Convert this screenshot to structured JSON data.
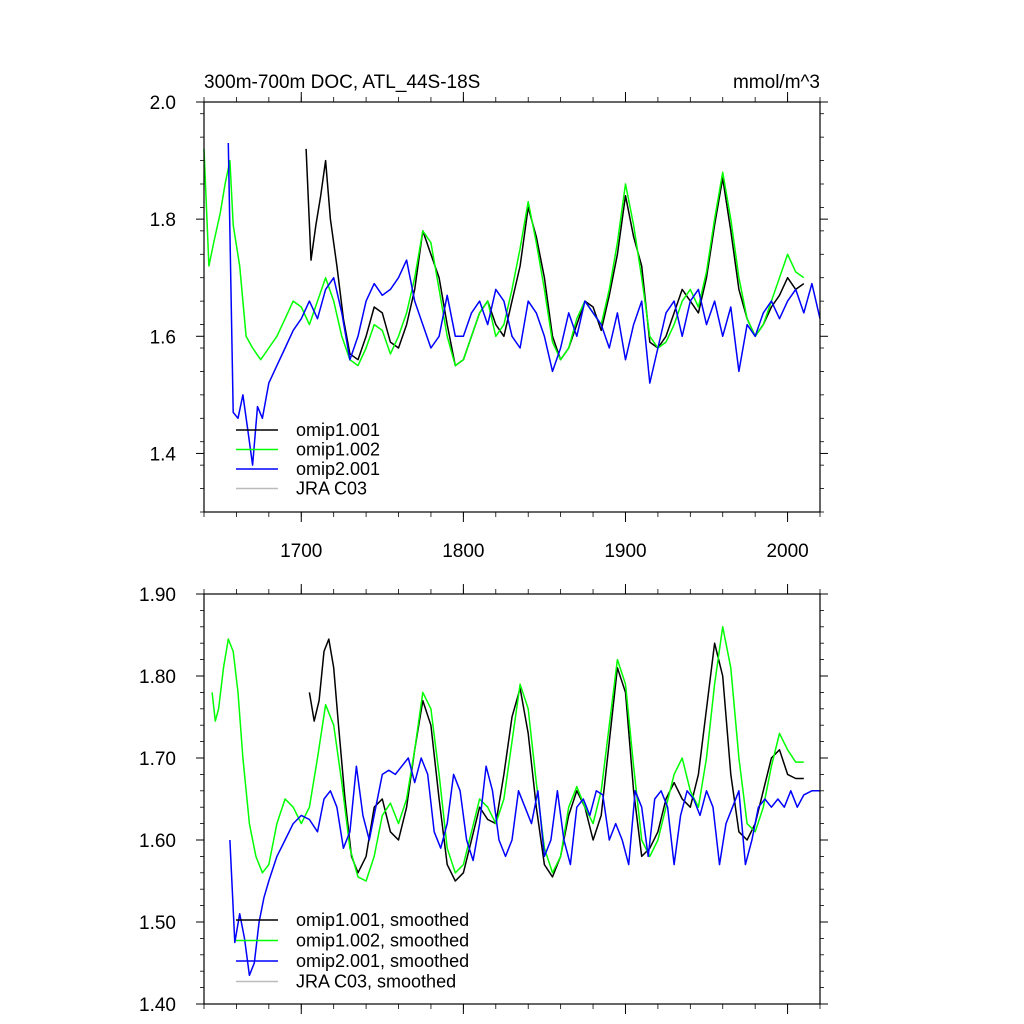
{
  "chart_data": [
    {
      "type": "line",
      "title": "300m-700m DOC, ATL_44S-18S",
      "units": "mmol/m^3",
      "xlim": [
        1640,
        2020
      ],
      "ylim": [
        1.3,
        2.0
      ],
      "yticks": [
        1.4,
        1.6,
        1.8,
        2.0
      ],
      "ytick_labels": [
        "1.4",
        "1.6",
        "1.8",
        "2.0"
      ],
      "xticks": [
        1700,
        1800,
        1900,
        2000
      ],
      "xtick_labels": [
        "1700",
        "1800",
        "1900",
        "2000"
      ],
      "legend_position": "bottom-left",
      "series": [
        {
          "name": "omip1.001",
          "color": "#000000",
          "x": [
            1703,
            1706,
            1709,
            1712,
            1715,
            1718,
            1722,
            1726,
            1730,
            1735,
            1740,
            1745,
            1750,
            1755,
            1760,
            1765,
            1770,
            1775,
            1780,
            1785,
            1790,
            1795,
            1800,
            1805,
            1810,
            1815,
            1820,
            1825,
            1830,
            1835,
            1840,
            1845,
            1850,
            1855,
            1860,
            1865,
            1870,
            1875,
            1880,
            1885,
            1890,
            1895,
            1900,
            1905,
            1910,
            1915,
            1920,
            1925,
            1930,
            1935,
            1940,
            1945,
            1950,
            1955,
            1960,
            1965,
            1970,
            1975,
            1980,
            1985,
            1990,
            1995,
            2000,
            2005,
            2010
          ],
          "y": [
            1.92,
            1.73,
            1.79,
            1.84,
            1.9,
            1.8,
            1.72,
            1.63,
            1.57,
            1.56,
            1.6,
            1.65,
            1.64,
            1.59,
            1.58,
            1.62,
            1.68,
            1.78,
            1.74,
            1.7,
            1.62,
            1.55,
            1.56,
            1.6,
            1.64,
            1.66,
            1.62,
            1.6,
            1.66,
            1.72,
            1.82,
            1.77,
            1.7,
            1.6,
            1.56,
            1.58,
            1.62,
            1.66,
            1.65,
            1.61,
            1.67,
            1.74,
            1.84,
            1.77,
            1.72,
            1.59,
            1.58,
            1.6,
            1.64,
            1.68,
            1.66,
            1.64,
            1.7,
            1.79,
            1.87,
            1.78,
            1.68,
            1.63,
            1.6,
            1.62,
            1.65,
            1.67,
            1.7,
            1.68,
            1.69
          ]
        },
        {
          "name": "omip1.002",
          "color": "#00ff00",
          "x": [
            1640,
            1643,
            1646,
            1650,
            1653,
            1656,
            1658,
            1662,
            1666,
            1670,
            1675,
            1680,
            1685,
            1690,
            1695,
            1700,
            1705,
            1710,
            1715,
            1720,
            1725,
            1730,
            1735,
            1740,
            1745,
            1750,
            1755,
            1760,
            1765,
            1770,
            1775,
            1780,
            1785,
            1790,
            1795,
            1800,
            1805,
            1810,
            1815,
            1820,
            1825,
            1830,
            1835,
            1840,
            1845,
            1850,
            1855,
            1860,
            1865,
            1870,
            1875,
            1880,
            1885,
            1890,
            1895,
            1900,
            1905,
            1910,
            1915,
            1920,
            1925,
            1930,
            1935,
            1940,
            1945,
            1950,
            1955,
            1960,
            1965,
            1970,
            1975,
            1980,
            1985,
            1990,
            1995,
            2000,
            2005,
            2010
          ],
          "y": [
            1.92,
            1.72,
            1.76,
            1.81,
            1.86,
            1.9,
            1.79,
            1.72,
            1.6,
            1.58,
            1.56,
            1.58,
            1.6,
            1.63,
            1.66,
            1.65,
            1.62,
            1.66,
            1.7,
            1.66,
            1.6,
            1.56,
            1.55,
            1.58,
            1.62,
            1.61,
            1.57,
            1.6,
            1.64,
            1.7,
            1.78,
            1.76,
            1.68,
            1.6,
            1.55,
            1.56,
            1.6,
            1.64,
            1.66,
            1.6,
            1.62,
            1.68,
            1.75,
            1.83,
            1.76,
            1.68,
            1.59,
            1.56,
            1.58,
            1.63,
            1.66,
            1.64,
            1.62,
            1.68,
            1.76,
            1.86,
            1.79,
            1.7,
            1.6,
            1.58,
            1.59,
            1.62,
            1.66,
            1.68,
            1.65,
            1.71,
            1.8,
            1.88,
            1.8,
            1.7,
            1.63,
            1.6,
            1.62,
            1.66,
            1.7,
            1.74,
            1.71,
            1.7
          ]
        },
        {
          "name": "omip2.001",
          "color": "#0000ff",
          "x": [
            1655,
            1658,
            1661,
            1664,
            1667,
            1670,
            1673,
            1676,
            1680,
            1685,
            1690,
            1695,
            1700,
            1705,
            1710,
            1715,
            1720,
            1725,
            1730,
            1735,
            1740,
            1745,
            1750,
            1755,
            1760,
            1765,
            1770,
            1775,
            1780,
            1785,
            1790,
            1795,
            1800,
            1805,
            1810,
            1815,
            1820,
            1825,
            1830,
            1835,
            1840,
            1845,
            1850,
            1855,
            1860,
            1865,
            1870,
            1875,
            1880,
            1885,
            1890,
            1895,
            1900,
            1905,
            1910,
            1915,
            1920,
            1925,
            1930,
            1935,
            1940,
            1945,
            1950,
            1955,
            1960,
            1965,
            1970,
            1975,
            1980,
            1985,
            1990,
            1995,
            2000,
            2005,
            2010,
            2015,
            2020
          ],
          "y": [
            1.93,
            1.47,
            1.46,
            1.5,
            1.44,
            1.38,
            1.48,
            1.46,
            1.52,
            1.55,
            1.58,
            1.61,
            1.63,
            1.66,
            1.63,
            1.68,
            1.7,
            1.64,
            1.56,
            1.6,
            1.66,
            1.69,
            1.67,
            1.68,
            1.7,
            1.73,
            1.66,
            1.62,
            1.58,
            1.6,
            1.67,
            1.6,
            1.6,
            1.64,
            1.66,
            1.62,
            1.68,
            1.66,
            1.6,
            1.58,
            1.66,
            1.64,
            1.6,
            1.54,
            1.58,
            1.64,
            1.6,
            1.66,
            1.64,
            1.62,
            1.58,
            1.64,
            1.56,
            1.62,
            1.66,
            1.52,
            1.58,
            1.64,
            1.66,
            1.6,
            1.66,
            1.68,
            1.62,
            1.66,
            1.6,
            1.65,
            1.54,
            1.62,
            1.6,
            1.64,
            1.66,
            1.63,
            1.66,
            1.68,
            1.64,
            1.69,
            1.63
          ]
        }
      ],
      "legend": [
        {
          "label": "omip1.001",
          "color": "#000000"
        },
        {
          "label": "omip1.002",
          "color": "#00ff00"
        },
        {
          "label": "omip2.001",
          "color": "#0000ff"
        },
        {
          "label": "JRA C03",
          "color": "#bbbbbb"
        }
      ]
    },
    {
      "type": "line",
      "title": "",
      "xlim": [
        1640,
        2020
      ],
      "ylim": [
        1.4,
        1.9
      ],
      "yticks": [
        1.4,
        1.5,
        1.6,
        1.7,
        1.8,
        1.9
      ],
      "ytick_labels": [
        "1.40",
        "1.50",
        "1.60",
        "1.70",
        "1.80",
        "1.90"
      ],
      "xticks": [
        1700,
        1800,
        1900,
        2000
      ],
      "xtick_labels": [],
      "legend_position": "bottom-left",
      "series": [
        {
          "name": "omip1.001, smoothed",
          "color": "#000000",
          "x": [
            1705,
            1708,
            1711,
            1714,
            1717,
            1720,
            1723,
            1727,
            1731,
            1735,
            1740,
            1745,
            1750,
            1755,
            1760,
            1765,
            1770,
            1775,
            1780,
            1785,
            1790,
            1795,
            1800,
            1805,
            1810,
            1815,
            1820,
            1825,
            1830,
            1835,
            1840,
            1845,
            1850,
            1855,
            1860,
            1865,
            1870,
            1875,
            1880,
            1885,
            1890,
            1895,
            1900,
            1905,
            1910,
            1915,
            1920,
            1925,
            1930,
            1935,
            1940,
            1945,
            1950,
            1955,
            1960,
            1965,
            1970,
            1975,
            1980,
            1985,
            1990,
            1995,
            2000,
            2005,
            2010
          ],
          "y": [
            1.78,
            1.745,
            1.77,
            1.83,
            1.845,
            1.81,
            1.74,
            1.65,
            1.58,
            1.56,
            1.58,
            1.64,
            1.65,
            1.61,
            1.6,
            1.64,
            1.71,
            1.77,
            1.74,
            1.65,
            1.57,
            1.55,
            1.56,
            1.6,
            1.64,
            1.625,
            1.62,
            1.68,
            1.75,
            1.785,
            1.73,
            1.64,
            1.57,
            1.555,
            1.58,
            1.63,
            1.66,
            1.64,
            1.6,
            1.63,
            1.72,
            1.81,
            1.78,
            1.66,
            1.58,
            1.59,
            1.61,
            1.65,
            1.67,
            1.65,
            1.64,
            1.68,
            1.76,
            1.84,
            1.8,
            1.68,
            1.61,
            1.6,
            1.62,
            1.66,
            1.7,
            1.71,
            1.68,
            1.675,
            1.675
          ]
        },
        {
          "name": "omip1.002, smoothed",
          "color": "#00ff00",
          "x": [
            1645,
            1647,
            1649,
            1652,
            1655,
            1658,
            1661,
            1664,
            1668,
            1672,
            1676,
            1680,
            1685,
            1690,
            1695,
            1700,
            1705,
            1710,
            1715,
            1720,
            1725,
            1730,
            1735,
            1740,
            1745,
            1750,
            1755,
            1760,
            1765,
            1770,
            1775,
            1780,
            1785,
            1790,
            1795,
            1800,
            1805,
            1810,
            1815,
            1820,
            1825,
            1830,
            1835,
            1840,
            1845,
            1850,
            1855,
            1860,
            1865,
            1870,
            1875,
            1880,
            1885,
            1890,
            1895,
            1900,
            1905,
            1910,
            1915,
            1920,
            1925,
            1930,
            1935,
            1940,
            1945,
            1950,
            1955,
            1960,
            1965,
            1970,
            1975,
            1980,
            1985,
            1990,
            1995,
            2000,
            2005,
            2010
          ],
          "y": [
            1.78,
            1.745,
            1.76,
            1.81,
            1.845,
            1.83,
            1.78,
            1.7,
            1.62,
            1.58,
            1.56,
            1.57,
            1.62,
            1.65,
            1.64,
            1.62,
            1.64,
            1.7,
            1.765,
            1.74,
            1.67,
            1.59,
            1.555,
            1.55,
            1.58,
            1.63,
            1.645,
            1.62,
            1.65,
            1.71,
            1.78,
            1.76,
            1.68,
            1.59,
            1.56,
            1.57,
            1.61,
            1.65,
            1.64,
            1.62,
            1.65,
            1.72,
            1.79,
            1.76,
            1.67,
            1.59,
            1.56,
            1.58,
            1.64,
            1.665,
            1.64,
            1.62,
            1.66,
            1.74,
            1.82,
            1.79,
            1.69,
            1.6,
            1.58,
            1.6,
            1.64,
            1.68,
            1.7,
            1.66,
            1.64,
            1.7,
            1.79,
            1.86,
            1.81,
            1.7,
            1.62,
            1.61,
            1.64,
            1.69,
            1.73,
            1.71,
            1.695,
            1.695
          ]
        },
        {
          "name": "omip2.001, smoothed",
          "color": "#0000ff",
          "x": [
            1656,
            1659,
            1662,
            1665,
            1668,
            1671,
            1674,
            1677,
            1680,
            1685,
            1690,
            1695,
            1700,
            1705,
            1710,
            1714,
            1718,
            1722,
            1726,
            1730,
            1734,
            1738,
            1742,
            1746,
            1750,
            1754,
            1758,
            1762,
            1766,
            1770,
            1774,
            1778,
            1782,
            1786,
            1790,
            1794,
            1798,
            1802,
            1806,
            1810,
            1814,
            1818,
            1822,
            1826,
            1830,
            1834,
            1838,
            1842,
            1846,
            1850,
            1854,
            1858,
            1862,
            1866,
            1870,
            1874,
            1878,
            1882,
            1886,
            1890,
            1894,
            1898,
            1902,
            1906,
            1910,
            1914,
            1918,
            1922,
            1926,
            1930,
            1934,
            1938,
            1942,
            1946,
            1950,
            1954,
            1958,
            1962,
            1966,
            1970,
            1974,
            1978,
            1982,
            1986,
            1990,
            1994,
            1998,
            2002,
            2006,
            2010,
            2015,
            2020
          ],
          "y": [
            1.6,
            1.475,
            1.51,
            1.48,
            1.435,
            1.45,
            1.5,
            1.53,
            1.55,
            1.58,
            1.6,
            1.62,
            1.63,
            1.625,
            1.61,
            1.65,
            1.66,
            1.64,
            1.59,
            1.61,
            1.69,
            1.63,
            1.6,
            1.64,
            1.68,
            1.685,
            1.68,
            1.69,
            1.7,
            1.67,
            1.7,
            1.68,
            1.61,
            1.59,
            1.62,
            1.68,
            1.66,
            1.6,
            1.575,
            1.62,
            1.69,
            1.66,
            1.6,
            1.58,
            1.6,
            1.66,
            1.64,
            1.62,
            1.66,
            1.58,
            1.6,
            1.66,
            1.6,
            1.57,
            1.64,
            1.65,
            1.63,
            1.66,
            1.655,
            1.6,
            1.62,
            1.6,
            1.57,
            1.66,
            1.64,
            1.58,
            1.65,
            1.66,
            1.64,
            1.57,
            1.63,
            1.66,
            1.65,
            1.63,
            1.66,
            1.64,
            1.57,
            1.62,
            1.64,
            1.66,
            1.57,
            1.6,
            1.64,
            1.65,
            1.64,
            1.65,
            1.64,
            1.66,
            1.64,
            1.655,
            1.66,
            1.66
          ]
        }
      ],
      "legend": [
        {
          "label": "omip1.001, smoothed",
          "color": "#000000"
        },
        {
          "label": "omip1.002, smoothed",
          "color": "#00ff00"
        },
        {
          "label": "omip2.001, smoothed",
          "color": "#0000ff"
        },
        {
          "label": "JRA C03, smoothed",
          "color": "#bbbbbb"
        }
      ]
    }
  ]
}
